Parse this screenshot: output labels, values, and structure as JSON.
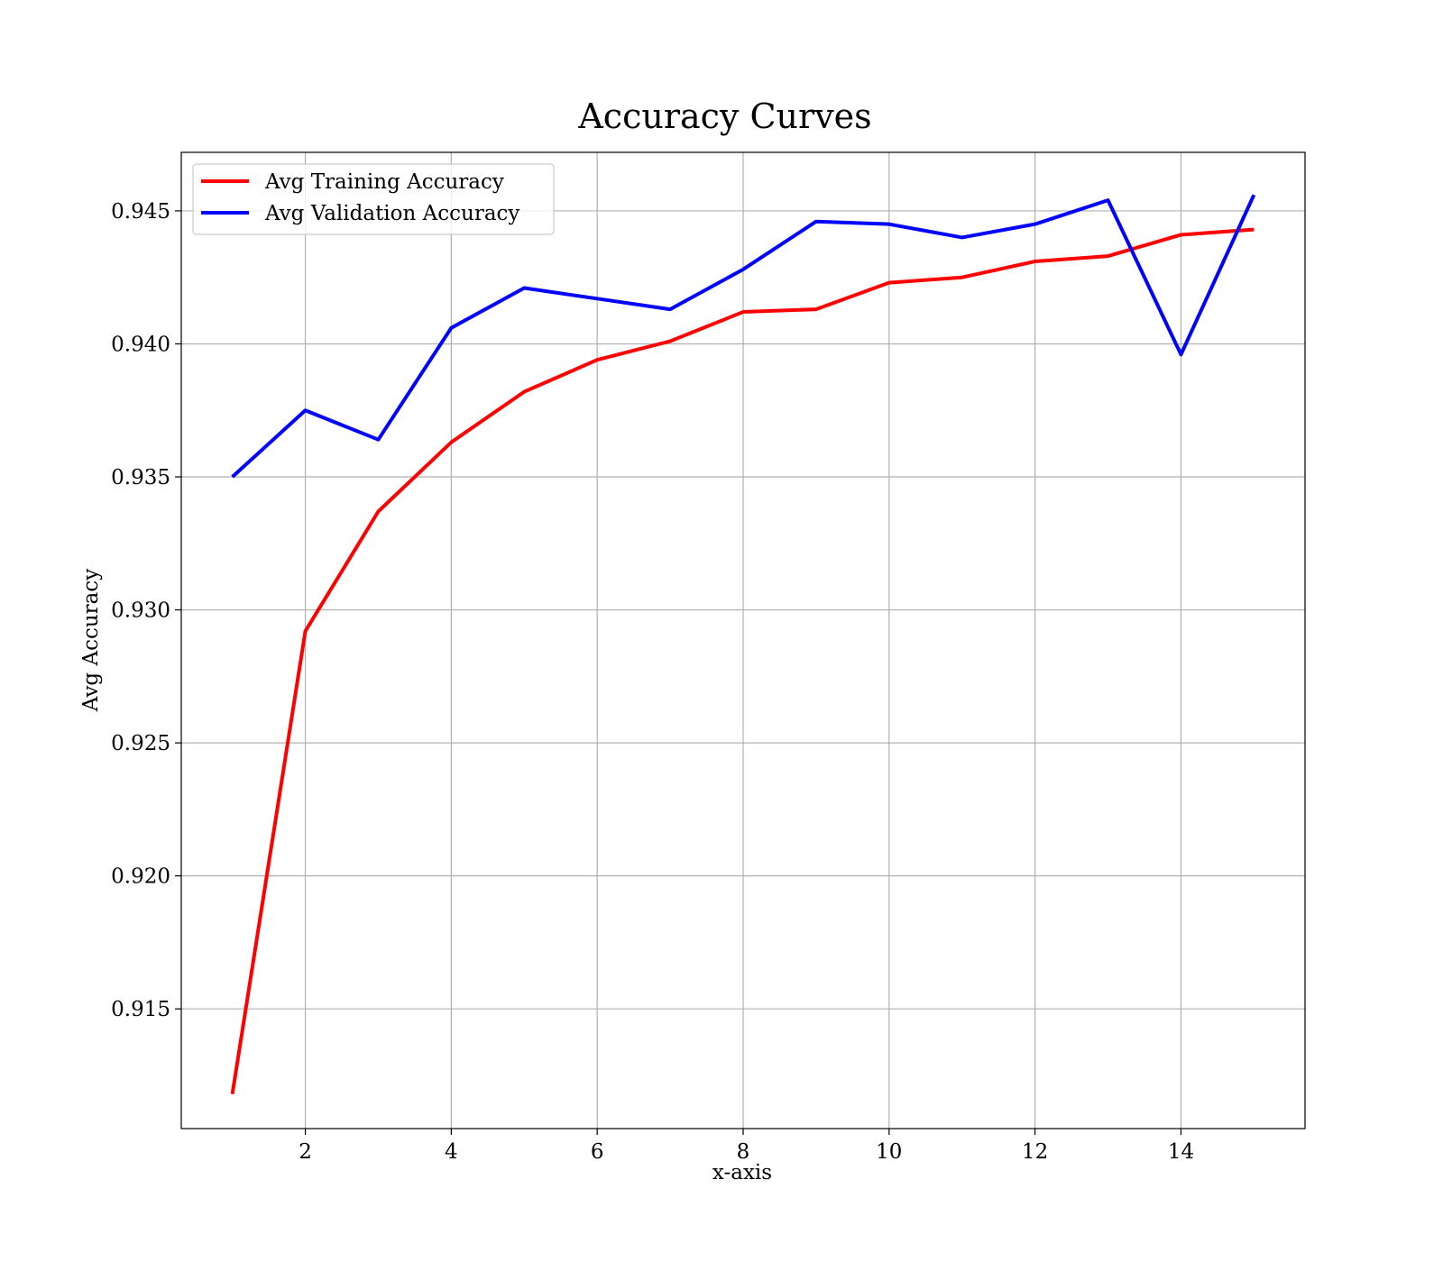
{
  "chart_data": {
    "type": "line",
    "title": "Accuracy Curves",
    "xlabel": "x-axis",
    "ylabel": "Avg Accuracy",
    "xlim": [
      0.3,
      15.7
    ],
    "ylim": [
      0.9105,
      0.9472
    ],
    "x_ticks": [
      2,
      4,
      6,
      8,
      10,
      12,
      14
    ],
    "x_tick_labels": [
      "2",
      "4",
      "6",
      "8",
      "10",
      "12",
      "14"
    ],
    "y_ticks": [
      0.915,
      0.92,
      0.925,
      0.93,
      0.935,
      0.94,
      0.945
    ],
    "y_tick_labels": [
      "0.915",
      "0.920",
      "0.925",
      "0.930",
      "0.935",
      "0.940",
      "0.945"
    ],
    "grid": true,
    "legend_position": "top-left",
    "x": [
      1,
      2,
      3,
      4,
      5,
      6,
      7,
      8,
      9,
      10,
      11,
      12,
      13,
      14,
      15
    ],
    "series": [
      {
        "name": "Avg Training Accuracy",
        "color": "#ff0000",
        "values": [
          0.9118,
          0.9292,
          0.9337,
          0.9363,
          0.9382,
          0.9394,
          0.9401,
          0.9412,
          0.9413,
          0.9423,
          0.9425,
          0.9431,
          0.9433,
          0.9441,
          0.9443
        ]
      },
      {
        "name": "Avg Validation Accuracy",
        "color": "#0000ff",
        "values": [
          0.935,
          0.9375,
          0.9364,
          0.9406,
          0.9421,
          0.9417,
          0.9413,
          0.9428,
          0.9446,
          0.9445,
          0.944,
          0.9445,
          0.9454,
          0.9396,
          0.9456
        ]
      }
    ]
  }
}
